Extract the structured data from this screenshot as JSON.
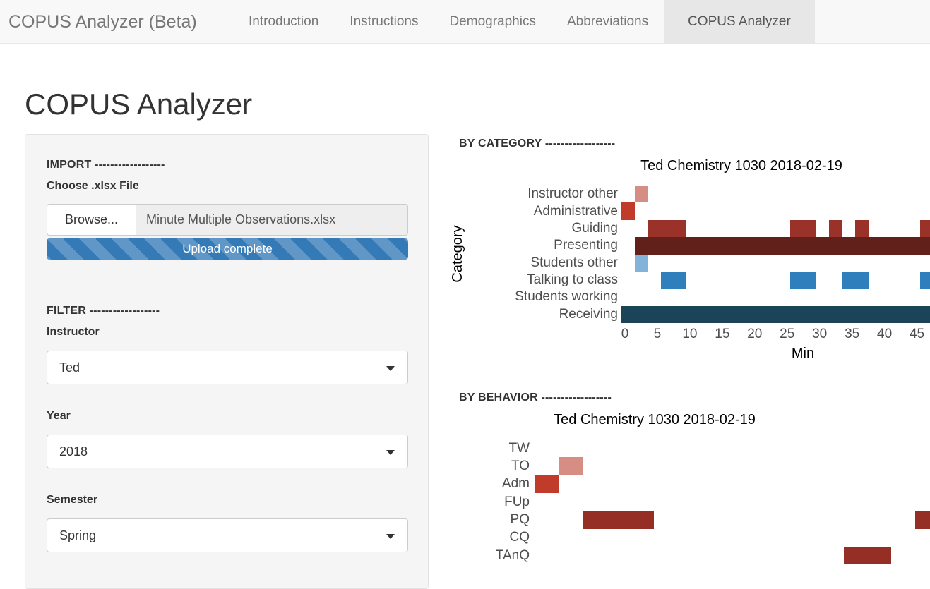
{
  "navbar": {
    "brand": "COPUS Analyzer (Beta)",
    "tabs": [
      {
        "label": "Introduction",
        "active": false
      },
      {
        "label": "Instructions",
        "active": false
      },
      {
        "label": "Demographics",
        "active": false
      },
      {
        "label": "Abbreviations",
        "active": false
      },
      {
        "label": "COPUS Analyzer",
        "active": true
      }
    ]
  },
  "page": {
    "title": "COPUS Analyzer"
  },
  "sidebar": {
    "import_heading": "IMPORT ------------------",
    "file_label": "Choose .xlsx File",
    "browse_button": "Browse...",
    "file_value": "Minute Multiple Observations.xlsx",
    "progress_text": "Upload complete",
    "progress_color": "#337ab7",
    "filter_heading": "FILTER ------------------",
    "filters": [
      {
        "label": "Instructor",
        "value": "Ted"
      },
      {
        "label": "Year",
        "value": "2018"
      },
      {
        "label": "Semester",
        "value": "Spring"
      }
    ]
  },
  "chart_data": [
    {
      "type": "heatmap",
      "section_heading": "BY CATEGORY ------------------",
      "title": "Ted Chemistry 1030 2018-02-19",
      "xlabel": "Min",
      "ylabel": "Category",
      "x_ticks": [
        0,
        5,
        10,
        15,
        20,
        25,
        30,
        35,
        40,
        45
      ],
      "x_visible_range": [
        -0.6,
        47
      ],
      "rows": [
        {
          "label": "Instructor other",
          "color": "#D68D84",
          "segments": [
            [
              2,
              3
            ]
          ]
        },
        {
          "label": "Administrative",
          "color": "#C13B2B",
          "segments": [
            [
              0,
              1
            ]
          ]
        },
        {
          "label": "Guiding",
          "color": "#9B3229",
          "segments": [
            [
              4,
              9
            ],
            [
              26,
              29
            ],
            [
              32,
              33
            ],
            [
              36,
              37
            ],
            [
              46,
              48
            ]
          ]
        },
        {
          "label": "Presenting",
          "color": "#61201A",
          "segments": [
            [
              2,
              48
            ]
          ]
        },
        {
          "label": "Students other",
          "color": "#83B3D8",
          "segments": [
            [
              2,
              3
            ]
          ]
        },
        {
          "label": "Talking to class",
          "color": "#2F7FBC",
          "segments": [
            [
              6,
              9
            ],
            [
              26,
              29
            ],
            [
              34,
              37
            ],
            [
              46,
              48
            ]
          ]
        },
        {
          "label": "Students working",
          "color": "#2F7FBC",
          "segments": []
        },
        {
          "label": "Receiving",
          "color": "#1B4459",
          "segments": [
            [
              0,
              48
            ]
          ]
        }
      ]
    },
    {
      "type": "heatmap",
      "section_heading": "BY BEHAVIOR ------------------",
      "title": "Ted Chemistry 1030 2018-02-19",
      "xlabel": "",
      "ylabel": "",
      "x_ticks": [],
      "x_visible_range": [
        -0.68,
        32.8
      ],
      "rows": [
        {
          "label": "TW",
          "color": "#9B3229",
          "segments": []
        },
        {
          "label": "TO",
          "color": "#D68D84",
          "segments": [
            [
              2,
              3
            ]
          ]
        },
        {
          "label": "Adm",
          "color": "#C13B2B",
          "segments": [
            [
              0,
              1
            ]
          ]
        },
        {
          "label": "FUp",
          "color": "#9B3229",
          "segments": []
        },
        {
          "label": "PQ",
          "color": "#952E25",
          "segments": [
            [
              4,
              9
            ],
            [
              32,
              34
            ]
          ]
        },
        {
          "label": "CQ",
          "color": "#9B3229",
          "segments": []
        },
        {
          "label": "TAnQ",
          "color": "#952E25",
          "segments": [
            [
              26,
              29
            ]
          ]
        }
      ]
    }
  ]
}
